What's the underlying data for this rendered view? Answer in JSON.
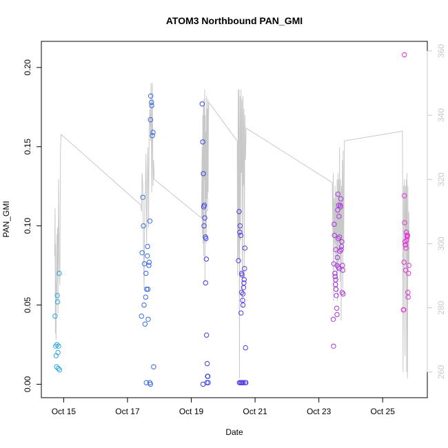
{
  "chart_data": {
    "type": "scatter",
    "title": "ATOM3 Northbound PAN_GMI",
    "xlabel": "Date",
    "ylabel": "PAN_GMI",
    "x_unit": "day of October",
    "xlim": [
      14.3,
      26.4
    ],
    "ylim": [
      -0.0085,
      0.2165
    ],
    "x_ticks": [
      {
        "value": 15,
        "label": "Oct 15"
      },
      {
        "value": 17,
        "label": "Oct 17"
      },
      {
        "value": 19,
        "label": "Oct 19"
      },
      {
        "value": 21,
        "label": "Oct 21"
      },
      {
        "value": 23,
        "label": "Oct 23"
      },
      {
        "value": 25,
        "label": "Oct 25"
      }
    ],
    "y_ticks": [
      {
        "value": 0.0,
        "label": "0.00"
      },
      {
        "value": 0.05,
        "label": "0.05"
      },
      {
        "value": 0.1,
        "label": "0.10"
      },
      {
        "value": 0.15,
        "label": "0.15"
      },
      {
        "value": 0.2,
        "label": "0.20"
      }
    ],
    "y2lim": [
      252,
      363
    ],
    "y2_ticks": [
      {
        "value": 260,
        "label": "260"
      },
      {
        "value": 280,
        "label": "280"
      },
      {
        "value": 300,
        "label": "300"
      },
      {
        "value": 320,
        "label": "320"
      },
      {
        "value": 340,
        "label": "340"
      },
      {
        "value": 360,
        "label": "360"
      }
    ],
    "grid": false,
    "colors": {
      "scatter_start": "#29a8e0",
      "scatter_mid": "#3a3ae6",
      "scatter_end": "#e830d8",
      "line": "#c8c8c8",
      "axis": "#000000",
      "right_axis": "#c8c8c8"
    },
    "series": [
      {
        "kind": "scatter",
        "x": [
          14.73,
          14.75,
          14.76,
          14.78,
          14.79,
          14.8,
          14.81,
          14.82,
          14.83,
          14.84,
          14.86,
          14.87,
          17.44,
          17.46,
          17.48,
          17.5,
          17.52,
          17.53,
          17.55,
          17.57,
          17.58,
          17.6,
          17.62,
          17.63,
          17.65,
          17.67,
          17.68,
          17.7,
          17.72,
          17.73,
          17.75,
          17.76,
          17.78,
          17.8,
          17.82,
          17.64,
          17.59,
          17.7,
          17.72,
          19.34,
          19.36,
          19.38,
          19.39,
          19.41,
          19.42,
          19.44,
          19.45,
          19.46,
          19.47,
          19.48,
          19.5,
          19.51,
          19.52,
          19.53,
          19.4,
          19.37,
          19.49,
          20.48,
          20.5,
          20.52,
          20.53,
          20.55,
          20.56,
          20.58,
          20.59,
          20.61,
          20.62,
          20.64,
          20.65,
          20.66,
          20.67,
          20.68,
          20.7,
          20.71,
          20.54,
          20.57,
          20.6,
          20.69,
          20.63,
          20.51,
          20.58,
          20.62,
          23.45,
          23.46,
          23.47,
          23.48,
          23.49,
          23.5,
          23.51,
          23.52,
          23.53,
          23.54,
          23.55,
          23.56,
          23.57,
          23.58,
          23.59,
          23.6,
          23.61,
          23.62,
          23.63,
          23.64,
          23.65,
          23.66,
          23.67,
          23.68,
          23.69,
          23.7,
          23.71,
          23.72,
          23.73,
          23.74,
          23.75,
          23.76,
          23.53,
          23.57,
          23.61,
          25.65,
          25.66,
          25.67,
          25.68,
          25.69,
          25.7,
          25.71,
          25.72,
          25.73,
          25.74,
          25.75,
          25.76,
          25.77,
          25.78,
          25.79,
          25.8,
          25.81,
          25.82,
          25.68,
          25.72
        ],
        "y": [
          0.043,
          0.024,
          0.018,
          0.011,
          0.025,
          0.056,
          0.052,
          0.02,
          0.01,
          0.024,
          0.07,
          0.009,
          0.043,
          0.083,
          0.118,
          0.1,
          0.05,
          0.076,
          0.038,
          0.055,
          0.07,
          0.06,
          0.081,
          0.087,
          0.041,
          0.075,
          0.077,
          0.103,
          0.167,
          0.182,
          0.178,
          0.176,
          0.157,
          0.159,
          0.011,
          0.06,
          0.001,
          0.001,
          0.0,
          0.177,
          0.153,
          0.133,
          0.112,
          0.113,
          0.105,
          0.093,
          0.064,
          0.092,
          0.079,
          0.031,
          0.013,
          0.005,
          0.005,
          0.001,
          0.1,
          0.0,
          0.001,
          0.078,
          0.109,
          0.096,
          0.1,
          0.094,
          0.045,
          0.07,
          0.069,
          0.053,
          0.05,
          0.061,
          0.064,
          0.066,
          0.073,
          0.086,
          0.023,
          0.001,
          0.001,
          0.001,
          0.001,
          0.001,
          0.001,
          0.001,
          0.058,
          0.057,
          0.041,
          0.024,
          0.076,
          0.101,
          0.094,
          0.07,
          0.068,
          0.063,
          0.066,
          0.06,
          0.056,
          0.048,
          0.044,
          0.08,
          0.11,
          0.12,
          0.092,
          0.113,
          0.106,
          0.073,
          0.093,
          0.084,
          0.113,
          0.112,
          0.117,
          0.085,
          0.087,
          0.09,
          0.058,
          0.075,
          0.072,
          0.057,
          0.085,
          0.075,
          0.074,
          0.047,
          0.047,
          0.077,
          0.119,
          0.102,
          0.09,
          0.088,
          0.088,
          0.086,
          0.096,
          0.091,
          0.094,
          0.093,
          0.094,
          0.058,
          0.055,
          0.07,
          0.075,
          0.208,
          0.072
        ]
      },
      {
        "kind": "line",
        "axis": "right",
        "x": [
          14.72,
          14.73,
          14.74,
          14.75,
          14.76,
          14.77,
          14.78,
          14.79,
          14.8,
          14.81,
          14.82,
          14.83,
          14.84,
          14.86,
          14.88,
          14.9,
          14.92,
          17.42,
          17.44,
          17.46,
          17.48,
          17.5,
          17.52,
          17.54,
          17.56,
          17.58,
          17.6,
          17.62,
          17.64,
          17.66,
          17.68,
          17.7,
          17.72,
          17.74,
          17.76,
          17.78,
          17.8,
          17.82,
          17.84,
          19.32,
          19.34,
          19.35,
          19.36,
          19.37,
          19.38,
          19.39,
          19.4,
          19.41,
          19.42,
          19.43,
          19.44,
          19.45,
          19.46,
          19.47,
          19.48,
          19.49,
          19.5,
          19.51,
          19.52,
          19.53,
          19.54,
          19.55,
          20.44,
          20.45,
          20.47,
          20.48,
          20.5,
          20.51,
          20.53,
          20.54,
          20.56,
          20.57,
          20.59,
          20.6,
          20.62,
          20.63,
          20.65,
          20.66,
          20.68,
          20.7,
          20.72,
          23.42,
          23.44,
          23.45,
          23.46,
          23.48,
          23.5,
          23.51,
          23.52,
          23.54,
          23.56,
          23.57,
          23.58,
          23.6,
          23.61,
          23.62,
          23.64,
          23.65,
          23.66,
          23.68,
          23.7,
          23.71,
          23.72,
          23.74,
          23.75,
          23.76,
          23.78,
          23.8,
          25.62,
          25.64,
          25.66,
          25.67,
          25.68,
          25.7,
          25.71,
          25.72,
          25.74,
          25.75,
          25.76,
          25.78,
          25.79,
          25.8,
          25.82,
          25.83
        ],
        "y": [
          296,
          311,
          272,
          300,
          270,
          288,
          282,
          303,
          290,
          305,
          278,
          295,
          320,
          294,
          287,
          330,
          334,
          312,
          310,
          322,
          318,
          300,
          286,
          312,
          316,
          328,
          300,
          318,
          330,
          305,
          335,
          342,
          332,
          350,
          316,
          350,
          318,
          326,
          320,
          308,
          330,
          303,
          340,
          300,
          343,
          296,
          345,
          320,
          348,
          288,
          340,
          306,
          335,
          300,
          346,
          314,
          342,
          310,
          345,
          316,
          340,
          344,
          332,
          290,
          348,
          295,
          348,
          258,
          346,
          301,
          348,
          322,
          345,
          280,
          346,
          318,
          342,
          289,
          340,
          326,
          336,
          319,
          302,
          322,
          282,
          314,
          300,
          318,
          295,
          316,
          288,
          320,
          282,
          322,
          294,
          320,
          300,
          330,
          288,
          320,
          276,
          318,
          300,
          326,
          286,
          329,
          300,
          332,
          335,
          260,
          318,
          306,
          320,
          265,
          318,
          300,
          320,
          260,
          322,
          258,
          318,
          290,
          310,
          294
        ]
      }
    ]
  }
}
